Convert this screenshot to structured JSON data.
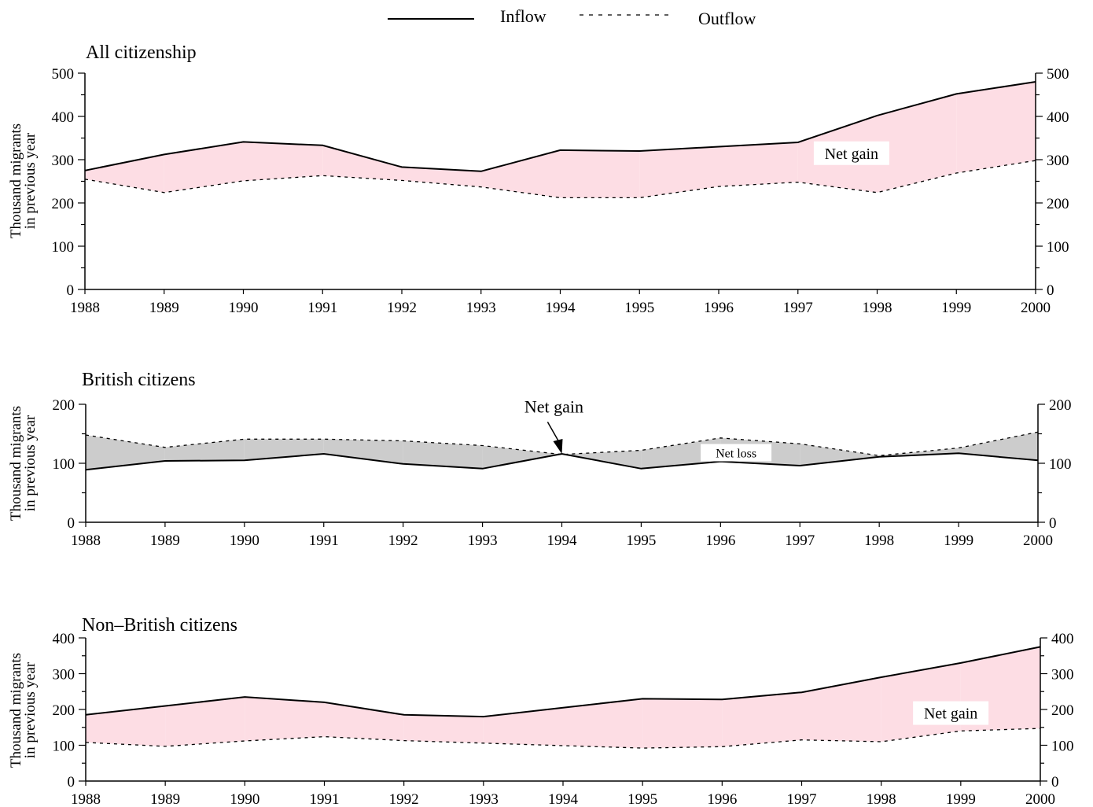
{
  "legend": {
    "inflow_label": "Inflow",
    "outflow_label": "Outflow"
  },
  "colors": {
    "gain_fill": "#fddde4",
    "loss_fill": "#cccccc",
    "line": "#000000"
  },
  "chart_data": [
    {
      "type": "area",
      "title": "All citizenship",
      "ylabel_lines": [
        "Thousand migrants",
        "in previous year"
      ],
      "x": [
        1988,
        1989,
        1990,
        1991,
        1992,
        1993,
        1994,
        1995,
        1996,
        1997,
        1998,
        1999,
        2000
      ],
      "series": [
        {
          "name": "Inflow",
          "values": [
            275,
            312,
            341,
            333,
            283,
            273,
            322,
            320,
            330,
            340,
            402,
            452,
            480
          ]
        },
        {
          "name": "Outflow",
          "values": [
            255,
            224,
            251,
            263,
            252,
            237,
            212,
            212,
            238,
            248,
            224,
            269,
            298
          ]
        }
      ],
      "ylim": [
        0,
        500
      ],
      "yticks": [
        0,
        100,
        200,
        300,
        400,
        500
      ],
      "annotations": [
        {
          "text": "Net gain",
          "x": 1997.2,
          "y": 315
        }
      ]
    },
    {
      "type": "area",
      "title": "British citizens",
      "ylabel_lines": [
        "Thousand migrants",
        "in previous year"
      ],
      "x": [
        1988,
        1989,
        1990,
        1991,
        1992,
        1993,
        1994,
        1995,
        1996,
        1997,
        1998,
        1999,
        2000
      ],
      "series": [
        {
          "name": "Inflow",
          "values": [
            89,
            104,
            105,
            116,
            99,
            91,
            116,
            91,
            103,
            96,
            111,
            117,
            105
          ]
        },
        {
          "name": "Outflow",
          "values": [
            148,
            127,
            141,
            141,
            138,
            130,
            115,
            122,
            143,
            133,
            113,
            126,
            153
          ]
        }
      ],
      "ylim": [
        0,
        200
      ],
      "yticks": [
        0,
        100,
        200
      ],
      "annotations": [
        {
          "text": "Net loss",
          "x": 1995.75,
          "y": 118
        },
        {
          "text": "Net gain",
          "x": 1993.9,
          "y": 186,
          "arrow_to": [
            1994,
            116
          ]
        }
      ]
    },
    {
      "type": "area",
      "title": "Non–British citizens",
      "ylabel_lines": [
        "Thousand migrants",
        "in previous  year"
      ],
      "x": [
        1988,
        1989,
        1990,
        1991,
        1992,
        1993,
        1994,
        1995,
        1996,
        1997,
        1998,
        1999,
        2000
      ],
      "series": [
        {
          "name": "Inflow",
          "values": [
            185,
            210,
            235,
            220,
            185,
            180,
            205,
            230,
            228,
            248,
            290,
            330,
            375
          ]
        },
        {
          "name": "Outflow",
          "values": [
            108,
            97,
            112,
            124,
            113,
            106,
            99,
            92,
            96,
            115,
            110,
            140,
            147
          ]
        }
      ],
      "ylim": [
        0,
        400
      ],
      "yticks": [
        0,
        100,
        200,
        300,
        400
      ],
      "annotations": [
        {
          "text": "Net gain",
          "x": 1998.4,
          "y": 190
        }
      ]
    }
  ]
}
